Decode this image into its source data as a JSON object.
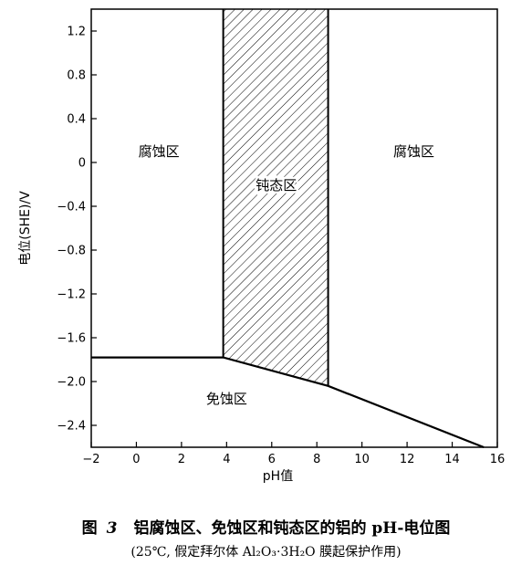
{
  "chart_data": {
    "type": "area",
    "xlabel": "pH值",
    "ylabel": "电位(SHE)/V",
    "xlim": [
      -2,
      16
    ],
    "ylim": [
      -2.6,
      1.4
    ],
    "x_ticks": [
      -2,
      0,
      2,
      4,
      6,
      8,
      10,
      12,
      14,
      16
    ],
    "y_ticks": [
      1.2,
      0.8,
      0.4,
      0,
      -0.4,
      -0.8,
      -1.2,
      -1.6,
      -2.0,
      -2.4
    ],
    "x_tick_labels": [
      "−2",
      "0",
      "2",
      "4",
      "6",
      "8",
      "10",
      "12",
      "14",
      "16"
    ],
    "y_tick_labels": [
      "1.2",
      "0.8",
      "0.4",
      "0",
      "−0.4",
      "−0.8",
      "−1.2",
      "−1.6",
      "−2.0",
      "−2.4"
    ],
    "boundaries": {
      "lower_line": [
        {
          "x": -2,
          "y": -1.78
        },
        {
          "x": 3.85,
          "y": -1.78
        },
        {
          "x": 8.5,
          "y": -2.04
        },
        {
          "x": 15.4,
          "y": -2.6
        }
      ],
      "passive_left_x": 3.85,
      "passive_right_x": 8.5,
      "passive_hatched": true
    },
    "regions": [
      {
        "label": "腐蚀区",
        "x": 1.0,
        "y": 0.06
      },
      {
        "label": "钝态区",
        "x": 6.2,
        "y": -0.25
      },
      {
        "label": "腐蚀区",
        "x": 12.3,
        "y": 0.06
      },
      {
        "label": "免蚀区",
        "x": 4.0,
        "y": -2.2
      }
    ],
    "grid": false
  },
  "caption": {
    "prefix": "图",
    "number": "3",
    "text": "铝腐蚀区、免蚀区和钝态区的铝的 pH-电位图",
    "note": "(25℃, 假定拜尔体 Al₂O₃·3H₂O 膜起保护作用)"
  },
  "colors": {
    "ink": "#000000",
    "background": "#ffffff"
  }
}
